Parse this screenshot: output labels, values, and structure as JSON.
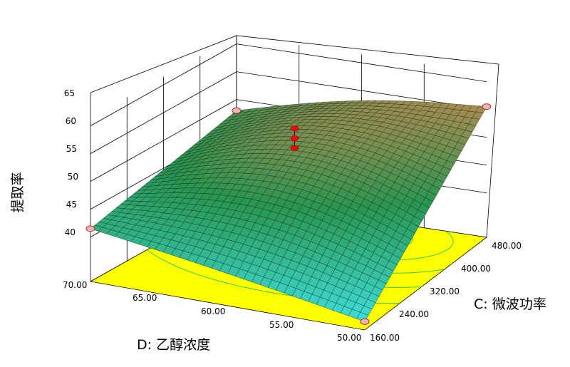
{
  "chart_data": {
    "type": "surface3d",
    "title": "",
    "zlabel": "提取率",
    "xlabel": "D: 乙醇浓度",
    "ylabel": "C: 微波功率",
    "x_ticks": [
      "50.00",
      "55.00",
      "60.00",
      "65.00",
      "70.00"
    ],
    "y_ticks": [
      "160.00",
      "240.00",
      "320.00",
      "400.00",
      "480.00"
    ],
    "z_ticks": [
      "40",
      "45",
      "50",
      "55",
      "60",
      "65"
    ],
    "xlim": [
      50,
      70
    ],
    "ylim": [
      160,
      480
    ],
    "zlim": [
      40,
      65
    ],
    "surface_corners": [
      {
        "x": 70,
        "y": 160,
        "z": 49.5
      },
      {
        "x": 50,
        "y": 160,
        "z": 41.5
      },
      {
        "x": 50,
        "y": 480,
        "z": 63.5
      },
      {
        "x": 70,
        "y": 480,
        "z": 56.0
      }
    ],
    "design_points": [
      {
        "x": 60,
        "y": 320,
        "z": 60.5
      },
      {
        "x": 60,
        "y": 320,
        "z": 61.5
      },
      {
        "x": 60,
        "y": 320,
        "z": 62.5
      }
    ],
    "floor_color": "#ffff00",
    "contour_color": "#3cc85a",
    "surface_low_color": "#40e0e0",
    "surface_high_color": "#b08a50",
    "point_color": "#ff0000",
    "corner_marker_color": "#ffb0b0"
  }
}
